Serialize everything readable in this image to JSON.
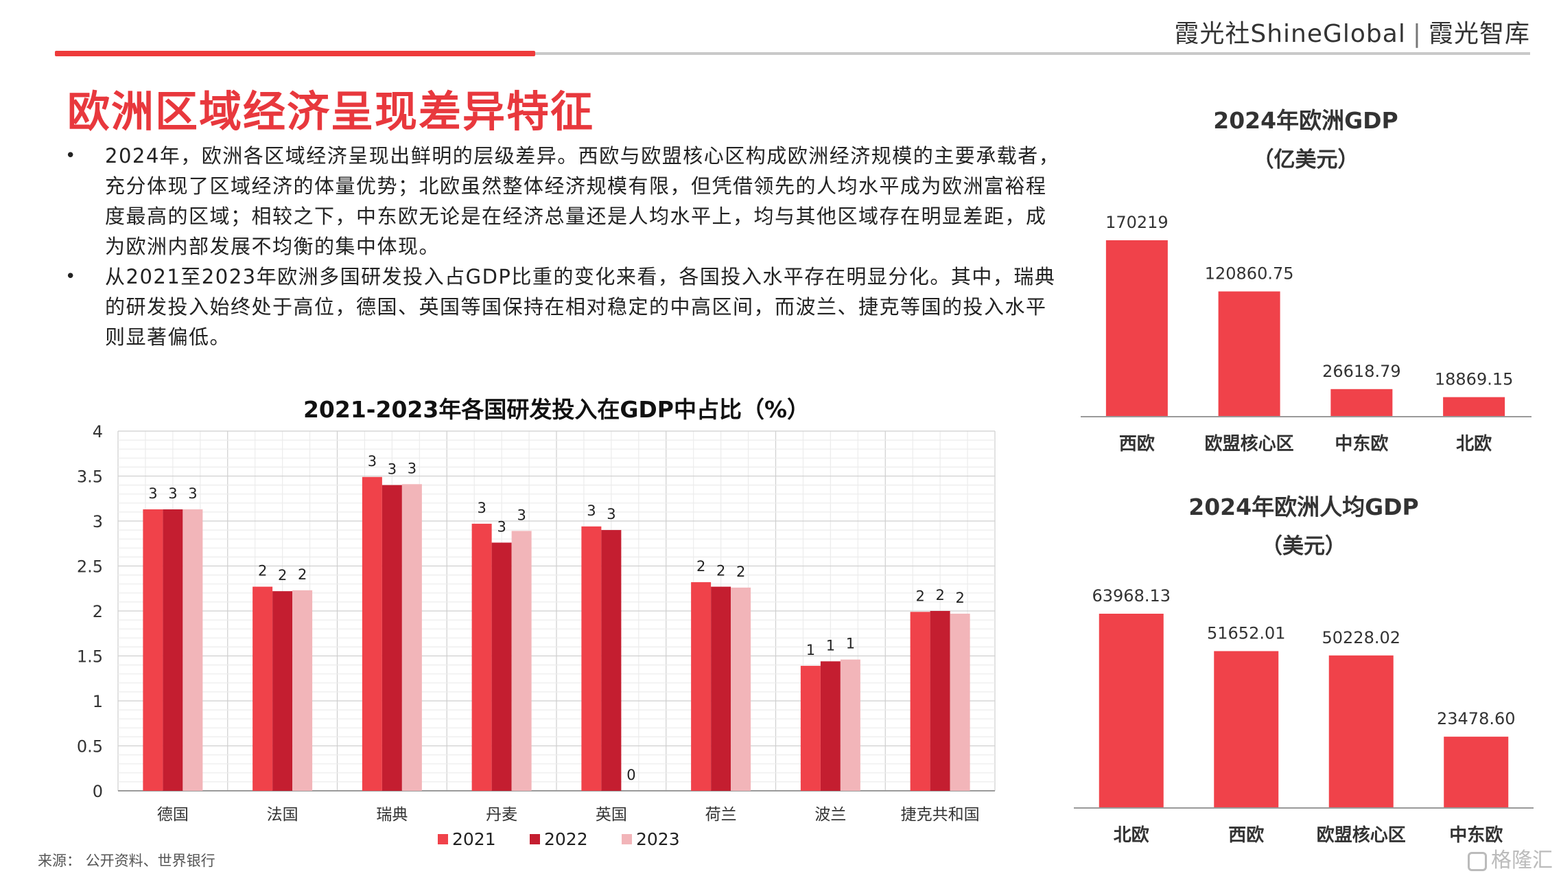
{
  "brand": {
    "name1": "霞光社",
    "name2": "ShineGlobal",
    "separator": "|",
    "name3": "霞光智库"
  },
  "page_title": "欧洲区域经济呈现差异特征",
  "bullets": [
    "2024年，欧洲各区域经济呈现出鲜明的层级差异。西欧与欧盟核心区构成欧洲经济规模的主要承载者，充分体现了区域经济的体量优势；北欧虽然整体经济规模有限，但凭借领先的人均水平成为欧洲富裕程度最高的区域；相较之下，中东欧无论是在经济总量还是人均水平上，均与其他区域存在明显差距，成为欧洲内部发展不均衡的集中体现。",
    "从2021至2023年欧洲多国研发投入占GDP比重的变化来看，各国投入水平存在明显分化。其中，瑞典的研发投入始终处于高位，德国、英国等国保持在相对稳定的中高区间，而波兰、捷克等国的投入水平则显著偏低。"
  ],
  "source": "来源： 公开资料、世界银行",
  "watermark": "格隆汇",
  "colors": {
    "accent": "#e8383d",
    "bar_main": "#f0424a",
    "s2021": "#f0424a",
    "s2022": "#c41e30",
    "s2023": "#f2b5b9"
  },
  "chart_data": [
    {
      "type": "bar",
      "title": "2021-2023年各国研发投入在GDP中占比（%）",
      "categories": [
        "德国",
        "法国",
        "瑞典",
        "丹麦",
        "英国",
        "荷兰",
        "波兰",
        "捷克共和国"
      ],
      "ylim": [
        0,
        4
      ],
      "yticks": [
        0,
        0.5,
        1,
        1.5,
        2,
        2.5,
        3,
        3.5,
        4
      ],
      "grid": true,
      "legend_position": "bottom",
      "series": [
        {
          "name": "2021",
          "values": [
            3.13,
            2.27,
            3.49,
            2.97,
            2.94,
            2.32,
            1.39,
            1.99
          ],
          "labels": [
            "3",
            "2",
            "3",
            "3",
            "3",
            "2",
            "1",
            "2"
          ]
        },
        {
          "name": "2022",
          "values": [
            3.13,
            2.22,
            3.4,
            2.76,
            2.9,
            2.27,
            1.44,
            2.0
          ],
          "labels": [
            "3",
            "2",
            "3",
            "3",
            "3",
            "2",
            "1",
            "2"
          ]
        },
        {
          "name": "2023",
          "values": [
            3.13,
            2.23,
            3.41,
            2.89,
            0,
            2.26,
            1.46,
            1.97
          ],
          "labels": [
            "3",
            "2",
            "3",
            "3",
            "0",
            "2",
            "1",
            "2"
          ]
        }
      ]
    },
    {
      "type": "bar",
      "title": "2024年欧洲GDP",
      "subtitle": "（亿美元）",
      "categories": [
        "西欧",
        "欧盟核心区",
        "中东欧",
        "北欧"
      ],
      "values": [
        170219,
        120860.75,
        26618.79,
        18869.15
      ],
      "labels": [
        "170219",
        "120860.75",
        "26618.79",
        "18869.15"
      ]
    },
    {
      "type": "bar",
      "title": "2024年欧洲人均GDP",
      "subtitle": "（美元）",
      "categories": [
        "北欧",
        "西欧",
        "欧盟核心区",
        "中东欧"
      ],
      "values": [
        63968.13,
        51652.01,
        50228.02,
        23478.6
      ],
      "labels": [
        "63968.13",
        "51652.01",
        "50228.02",
        "23478.60"
      ]
    }
  ]
}
